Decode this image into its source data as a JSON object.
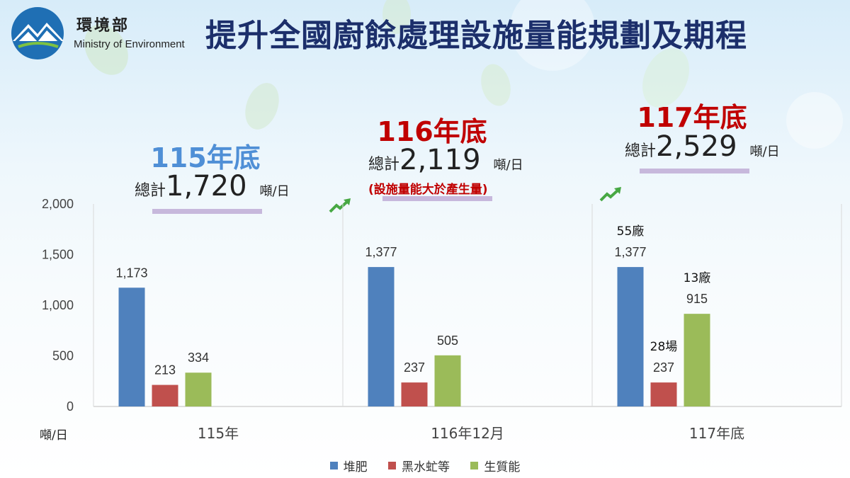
{
  "header": {
    "org_name_zh": "環境部",
    "org_name_en": "Ministry of Environment",
    "title": "提升全國廚餘處理設施量能規劃及期程"
  },
  "summaries": [
    {
      "heading": "115年底",
      "total_label": "總計",
      "total_value": "1,720",
      "unit": "噸/日",
      "note": "",
      "color": "#4f8fd6"
    },
    {
      "heading": "116年底",
      "total_label": "總計",
      "total_value": "2,119",
      "unit": "噸/日",
      "note": "(設施量能大於產生量)",
      "color": "#c00000"
    },
    {
      "heading": "117年底",
      "total_label": "總計",
      "total_value": "2,529",
      "unit": "噸/日",
      "note": "",
      "color": "#c00000"
    }
  ],
  "colors": {
    "compost": "#4f81bd",
    "bsf": "#c0504d",
    "biomass": "#9bbb59",
    "underline": "#c7b8dc"
  },
  "icons": [
    "environment-logo-icon",
    "trend-up-arrow-icon"
  ],
  "chart_data": {
    "type": "bar",
    "categories": [
      "115年",
      "116年12月",
      "117年底"
    ],
    "series": [
      {
        "name": "堆肥",
        "values": [
          1173,
          1377,
          1377
        ]
      },
      {
        "name": "黑水虻等",
        "values": [
          213,
          237,
          237
        ]
      },
      {
        "name": "生質能",
        "values": [
          334,
          505,
          915
        ]
      }
    ],
    "value_labels": [
      [
        "1,173",
        "1,377",
        "1,377"
      ],
      [
        "213",
        "237",
        "237"
      ],
      [
        "334",
        "505",
        "915"
      ]
    ],
    "annotations": [
      {
        "category": "117年底",
        "series": "堆肥",
        "text": "55廠"
      },
      {
        "category": "117年底",
        "series": "黑水虻等",
        "text": "28場"
      },
      {
        "category": "117年底",
        "series": "生質能",
        "text": "13廠"
      }
    ],
    "yticks": [
      "0",
      "500",
      "1,000",
      "1,500",
      "2,000"
    ],
    "ylim": [
      0,
      2000
    ],
    "ylabel": "噸/日",
    "grid": false,
    "legend_position": "bottom"
  }
}
